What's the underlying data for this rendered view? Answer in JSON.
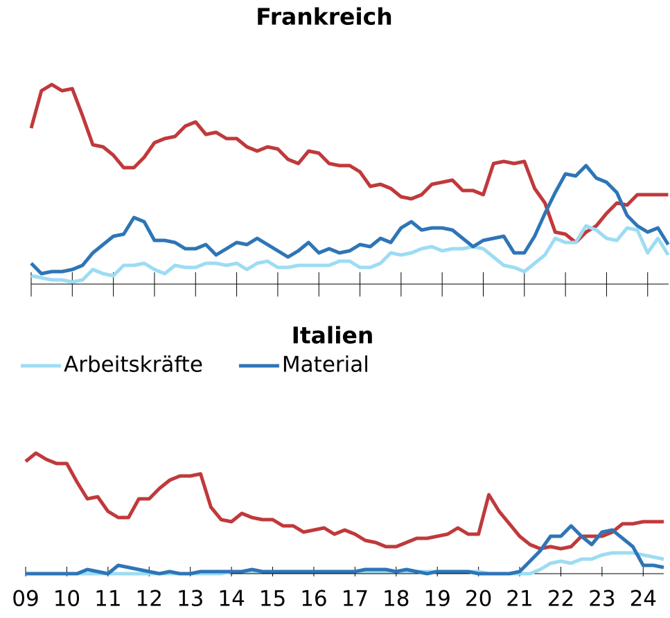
{
  "chart_data": [
    {
      "type": "line",
      "title": "Frankreich",
      "x": [
        9,
        9.25,
        9.5,
        9.75,
        10,
        10.25,
        10.5,
        10.75,
        11,
        11.25,
        11.5,
        11.75,
        12,
        12.25,
        12.5,
        12.75,
        13,
        13.25,
        13.5,
        13.75,
        14,
        14.25,
        14.5,
        14.75,
        15,
        15.25,
        15.5,
        15.75,
        16,
        16.25,
        16.5,
        16.75,
        17,
        17.25,
        17.5,
        17.75,
        18,
        18.25,
        18.5,
        18.75,
        19,
        19.25,
        19.5,
        19.75,
        20,
        20.25,
        20.5,
        20.75,
        21,
        21.25,
        21.5,
        21.75,
        22,
        22.25,
        22.5,
        22.75,
        23,
        23.25,
        23.5,
        23.75,
        24,
        24.25,
        24.5
      ],
      "xlim": [
        9,
        24.51
      ],
      "xticks": [
        9,
        10,
        11,
        12,
        13,
        14,
        15,
        16,
        17,
        18,
        19,
        20,
        21,
        22,
        23,
        24
      ],
      "ylim": [
        0,
        100
      ],
      "series": [
        {
          "color": "#c0393b",
          "values": [
            75,
            93,
            96,
            93,
            94,
            81,
            67,
            66,
            62,
            56,
            56,
            61,
            68,
            70,
            71,
            76,
            78,
            72,
            73,
            70,
            70,
            66,
            64,
            66,
            65,
            60,
            58,
            64,
            63,
            58,
            57,
            57,
            54,
            47,
            48,
            46,
            42,
            41,
            43,
            48,
            49,
            50,
            45,
            45,
            43,
            58,
            59,
            58,
            59,
            46,
            39,
            25,
            24,
            20,
            25,
            28,
            34,
            39,
            38,
            43,
            43,
            43,
            43
          ]
        },
        {
          "color": "#9ddcf3",
          "values": [
            4,
            3,
            2,
            2,
            1,
            2,
            7,
            5,
            4,
            9,
            9,
            10,
            7,
            5,
            9,
            8,
            8,
            10,
            10,
            9,
            10,
            7,
            10,
            11,
            8,
            8,
            9,
            9,
            9,
            9,
            11,
            11,
            8,
            8,
            10,
            15,
            14,
            15,
            17,
            18,
            16,
            17,
            17,
            18,
            17,
            13,
            9,
            8,
            6,
            10,
            14,
            22,
            20,
            20,
            28,
            26,
            22,
            21,
            27,
            26,
            15,
            22,
            14
          ]
        },
        {
          "color": "#2e75b6",
          "values": [
            10,
            5,
            6,
            6,
            7,
            9,
            15,
            19,
            23,
            24,
            32,
            30,
            21,
            21,
            20,
            17,
            17,
            19,
            14,
            17,
            20,
            19,
            22,
            19,
            16,
            13,
            16,
            20,
            15,
            17,
            15,
            16,
            19,
            18,
            22,
            20,
            27,
            30,
            26,
            27,
            27,
            26,
            22,
            18,
            21,
            22,
            23,
            15,
            15,
            23,
            34,
            44,
            53,
            52,
            57,
            51,
            49,
            44,
            33,
            28,
            25,
            27,
            19
          ]
        }
      ]
    },
    {
      "type": "line",
      "title": "Italien",
      "x": [
        9,
        9.25,
        9.5,
        9.75,
        10,
        10.25,
        10.5,
        10.75,
        11,
        11.25,
        11.5,
        11.75,
        12,
        12.25,
        12.5,
        12.75,
        13,
        13.25,
        13.5,
        13.75,
        14,
        14.25,
        14.5,
        14.75,
        15,
        15.25,
        15.5,
        15.75,
        16,
        16.25,
        16.5,
        16.75,
        17,
        17.25,
        17.5,
        17.75,
        18,
        18.25,
        18.5,
        18.75,
        19,
        19.25,
        19.5,
        19.75,
        20,
        20.25,
        20.5,
        20.75,
        21,
        21.25,
        21.5,
        21.75,
        22,
        22.25,
        22.5,
        22.75,
        23,
        23.25,
        23.5,
        23.75,
        24,
        24.25,
        24.5
      ],
      "xlim": [
        9,
        24.5
      ],
      "xticks": [
        {
          "value": 9,
          "label": "09"
        },
        10,
        11,
        12,
        13,
        14,
        15,
        16,
        17,
        18,
        19,
        20,
        21,
        22,
        23,
        24
      ],
      "ylim": [
        0,
        100
      ],
      "series": [
        {
          "color": "#c0393b",
          "values": [
            54,
            58,
            55,
            53,
            53,
            44,
            36,
            37,
            30,
            27,
            27,
            36,
            36,
            41,
            45,
            47,
            47,
            48,
            32,
            26,
            25,
            29,
            27,
            26,
            26,
            23,
            23,
            20,
            21,
            22,
            19,
            21,
            19,
            16,
            15,
            13,
            13,
            15,
            17,
            17,
            18,
            19,
            22,
            19,
            19,
            38,
            30,
            24,
            18,
            14,
            12,
            13,
            12,
            13,
            18,
            18,
            18,
            20,
            24,
            24,
            25,
            25,
            25
          ]
        },
        {
          "name": "Arbeitskräfte",
          "color": "#9ddcf3",
          "values": [
            0,
            0,
            0,
            0,
            0,
            0,
            0,
            0,
            0,
            0,
            0,
            0,
            0,
            0,
            0,
            0,
            0,
            0,
            0,
            0,
            1,
            1,
            1,
            1,
            1,
            1,
            1,
            1,
            1,
            1,
            1,
            1,
            1,
            1,
            1,
            1,
            1,
            1,
            1,
            1,
            1,
            1,
            1,
            1,
            1,
            0,
            0,
            0,
            0,
            0,
            2,
            5,
            6,
            5,
            7,
            7,
            9,
            10,
            10,
            10,
            9,
            8,
            7
          ]
        },
        {
          "name": "Material",
          "color": "#2e75b6",
          "values": [
            0,
            0,
            0,
            0,
            0,
            0,
            2,
            1,
            0,
            4,
            3,
            2,
            1,
            0,
            1,
            0,
            0,
            1,
            1,
            1,
            1,
            1,
            2,
            1,
            1,
            1,
            1,
            1,
            1,
            1,
            1,
            1,
            1,
            2,
            2,
            2,
            1,
            2,
            1,
            0,
            1,
            1,
            1,
            1,
            0,
            0,
            0,
            0,
            1,
            6,
            11,
            18,
            18,
            23,
            18,
            14,
            20,
            21,
            17,
            13,
            4,
            4,
            3
          ]
        }
      ]
    }
  ]
}
